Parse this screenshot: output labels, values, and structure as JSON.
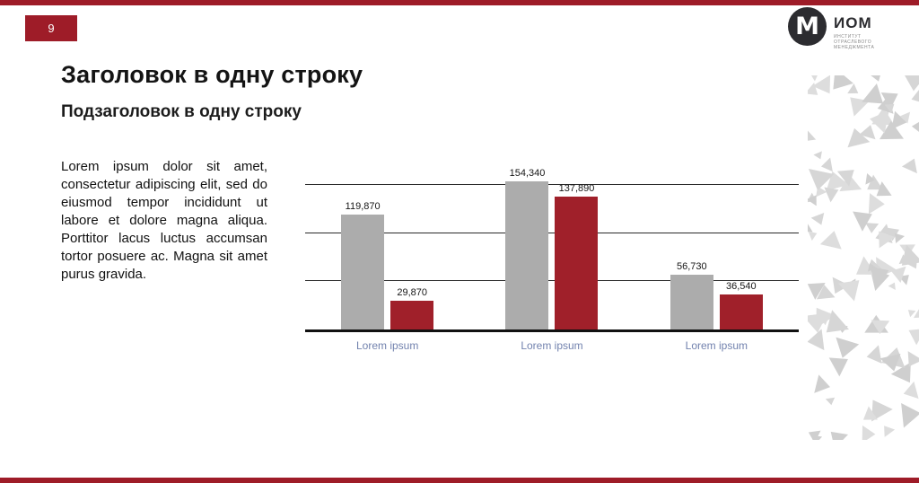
{
  "page": {
    "number": "9",
    "title": "Заголовок в одну строку",
    "subtitle": "Подзаголовок в одну строку",
    "body_text": "Lorem ipsum dolor sit amet, consectetur adipiscing elit, sed do eiusmod tempor incididunt ut labore et dolore magna aliqua. Porttitor lacus luctus accumsan tortor posuere ac. Magna sit amet purus gravida."
  },
  "logo": {
    "monogram": "M",
    "name": "ИОМ",
    "tagline_lines": [
      "ИНСТИТУТ",
      "ОТРАСЛЕВОГО",
      "МЕНЕДЖМЕНТА"
    ]
  },
  "colors": {
    "accent_red": "#9E1C28",
    "bar_gray": "#ACACAC",
    "bar_red": "#A0202A",
    "axis_label_blue": "#7282AE",
    "pattern_grays": [
      "#D6D6D6",
      "#DDDDDD",
      "#CFCFCF"
    ]
  },
  "chart_data": {
    "type": "bar",
    "categories": [
      "Lorem ipsum",
      "Lorem ipsum",
      "Lorem ipsum"
    ],
    "series": [
      {
        "name": "series-gray",
        "color_key": "bar_gray",
        "values": [
          119870,
          154340,
          56730
        ],
        "labels": [
          "119,870",
          "154,340",
          "56,730"
        ]
      },
      {
        "name": "series-red",
        "color_key": "bar_red",
        "values": [
          29870,
          137890,
          36540
        ],
        "labels": [
          "29,870",
          "137,890",
          "36,540"
        ]
      }
    ],
    "title": "",
    "xlabel": "",
    "ylabel": "",
    "ylim": [
      0,
      170000
    ],
    "gridlines": [
      50000,
      100000,
      150000
    ],
    "grid": true,
    "legend": "none"
  }
}
